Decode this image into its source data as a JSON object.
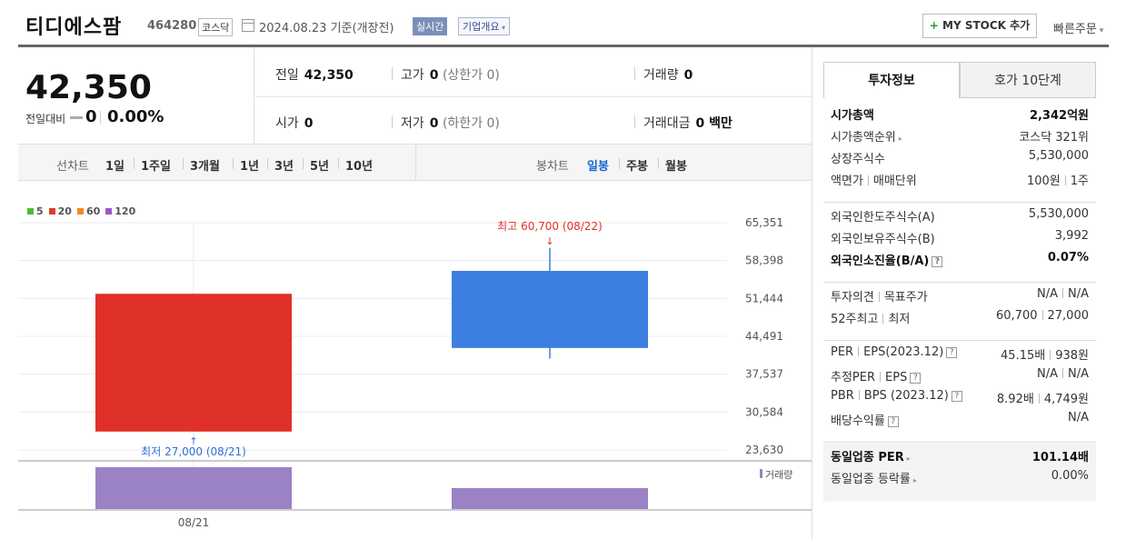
{
  "header": {
    "company": "티디에스팜",
    "code": "464280",
    "market": "코스닥",
    "date": "2024.08.23 기준(개장전)",
    "realtime": "실시간",
    "overview": "기업개요",
    "mystock_plus": "+",
    "mystock": "MY STOCK 추가",
    "quick_order": "빠른주문"
  },
  "price": {
    "current": "42,350",
    "change_label": "전일대비",
    "change_value": "0",
    "change_pct": "0.00%"
  },
  "stats": {
    "prev_label": "전일",
    "prev_value": "42,350",
    "high_label": "고가",
    "high_value": "0",
    "high_sub": "(상한가 0)",
    "volume_label": "거래량",
    "volume_value": "0",
    "open_label": "시가",
    "open_value": "0",
    "low_label": "저가",
    "low_value": "0",
    "low_sub": "(하한가 0)",
    "amount_label": "거래대금",
    "amount_value": "0 백만"
  },
  "controls": {
    "line_label": "선차트",
    "line_periods": [
      "1일",
      "1주일",
      "3개월",
      "1년",
      "3년",
      "5년",
      "10년"
    ],
    "candle_label": "봉차트",
    "candle_periods": [
      "일봉",
      "주봉",
      "월봉"
    ],
    "candle_active": "일봉"
  },
  "legend": [
    {
      "name": "5",
      "color": "#4fba3c"
    },
    {
      "name": "20",
      "color": "#e03a2f"
    },
    {
      "name": "60",
      "color": "#f08a24"
    },
    {
      "name": "120",
      "color": "#9b59c9"
    }
  ],
  "chart_data": {
    "type": "candlestick",
    "y_ticks": [
      "65,351",
      "58,398",
      "51,444",
      "44,491",
      "37,537",
      "30,584",
      "23,630"
    ],
    "ylim": [
      23630,
      65351
    ],
    "x_labels": [
      "08/21"
    ],
    "candles": [
      {
        "date": "08/21",
        "open": 52300,
        "close": 27000,
        "high": 52300,
        "low": 27000,
        "color": "#e0302a"
      },
      {
        "date": "08/22",
        "open": 56500,
        "close": 42350,
        "high": 60700,
        "low": 40400,
        "color": "#3b7fe0"
      }
    ],
    "max_annotation": "최고 60,700 (08/22)",
    "min_annotation": "최저 27,000 (08/21)",
    "volume_label": "거래량",
    "volume": [
      {
        "date": "08/21",
        "value": 1.0
      },
      {
        "date": "08/22",
        "value": 0.5
      }
    ],
    "volume_color": "#9a82c4"
  },
  "panel": {
    "tab_invest": "투자정보",
    "tab_hoga": "호가 10단계",
    "sec1": [
      {
        "l": "시가총액",
        "r": "2,342억원",
        "bold": true
      },
      {
        "l": "시가총액순위",
        "r": "코스닥 321위",
        "tri": true
      },
      {
        "l": "상장주식수",
        "r": "5,530,000"
      },
      {
        "l": "액면가",
        "l2": "매매단위",
        "r": "100원",
        "r2": "1주"
      }
    ],
    "sec2": [
      {
        "l": "외국인한도주식수(A)",
        "r": "5,530,000"
      },
      {
        "l": "외국인보유주식수(B)",
        "r": "3,992"
      },
      {
        "l": "외국인소진율(B/A)",
        "r": "0.07%",
        "bold": true,
        "q": true
      }
    ],
    "sec3": [
      {
        "l": "투자의견",
        "l2": "목표주가",
        "r": "N/A",
        "r2": "N/A"
      },
      {
        "l": "52주최고",
        "l2": "최저",
        "r": "60,700",
        "r2": "27,000"
      }
    ],
    "sec4": [
      {
        "l": "PER",
        "l2": "EPS(2023.12)",
        "r": "45.15배",
        "r2": "938원",
        "q": true
      },
      {
        "l": "추정PER",
        "l2": "EPS",
        "r": "N/A",
        "r2": "N/A",
        "q": true
      },
      {
        "l": "PBR",
        "l2": "BPS (2023.12)",
        "r": "8.92배",
        "r2": "4,749원",
        "q": true
      },
      {
        "l": "배당수익률",
        "r": "N/A",
        "q": true
      }
    ],
    "sec5": [
      {
        "l": "동일업종 PER",
        "r": "101.14배",
        "bold": true,
        "tri": true
      },
      {
        "l": "동일업종 등락률",
        "r": "0.00%",
        "tri": true
      }
    ],
    "q_mark": "?"
  }
}
